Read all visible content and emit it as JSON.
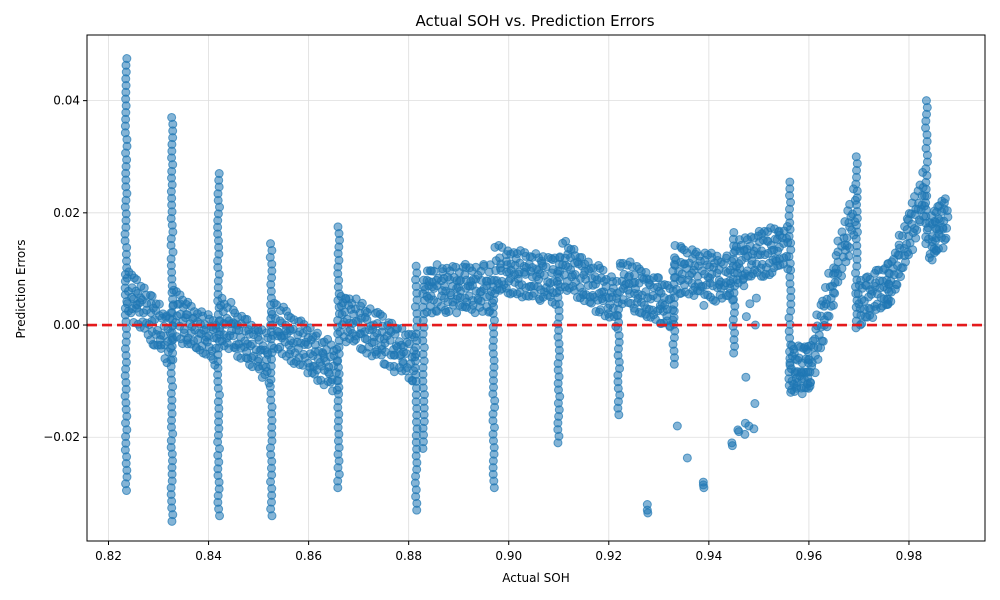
{
  "chart_data": {
    "type": "scatter",
    "title": "Actual SOH vs. Prediction Errors",
    "xlabel": "Actual SOH",
    "ylabel": "Prediction Errors",
    "xlim": [
      0.8157,
      0.9952
    ],
    "ylim": [
      -0.0385,
      0.0517
    ],
    "xticks": [
      0.82,
      0.84,
      0.86,
      0.88,
      0.9,
      0.92,
      0.94,
      0.96,
      0.98
    ],
    "xtick_labels": [
      "0.82",
      "0.84",
      "0.86",
      "0.88",
      "0.90",
      "0.92",
      "0.94",
      "0.96",
      "0.98"
    ],
    "yticks": [
      -0.02,
      0.0,
      0.02,
      0.04
    ],
    "ytick_labels": [
      "−0.02",
      "0.00",
      "0.02",
      "0.04"
    ],
    "grid": true,
    "reference_line": {
      "y": 0.0,
      "style": "dashed",
      "color": "#e41a1c"
    },
    "point_color": "#1f77b4",
    "vertical_streaks": [
      {
        "x": 0.8235,
        "y_min": -0.0295,
        "y_max": 0.0475
      },
      {
        "x": 0.8327,
        "y_min": -0.035,
        "y_max": 0.037
      },
      {
        "x": 0.842,
        "y_min": -0.034,
        "y_max": 0.027
      },
      {
        "x": 0.8525,
        "y_min": -0.034,
        "y_max": 0.0145
      },
      {
        "x": 0.866,
        "y_min": -0.029,
        "y_max": 0.0175
      },
      {
        "x": 0.8815,
        "y_min": -0.033,
        "y_max": 0.0105
      },
      {
        "x": 0.883,
        "y_min": -0.022,
        "y_max": 0.008
      },
      {
        "x": 0.897,
        "y_min": -0.029,
        "y_max": 0.008
      },
      {
        "x": 0.91,
        "y_min": -0.021,
        "y_max": 0.012
      },
      {
        "x": 0.922,
        "y_min": -0.016,
        "y_max": 0.004
      },
      {
        "x": 0.933,
        "y_min": -0.007,
        "y_max": 0.012
      },
      {
        "x": 0.945,
        "y_min": -0.005,
        "y_max": 0.0165
      },
      {
        "x": 0.9562,
        "y_min": -0.012,
        "y_max": 0.0255
      },
      {
        "x": 0.9695,
        "y_min": -0.0005,
        "y_max": 0.03
      },
      {
        "x": 0.9835,
        "y_min": 0.0145,
        "y_max": 0.04
      }
    ],
    "trend_segments": [
      [
        [
          0.824,
          0.006
        ],
        [
          0.8325,
          -0.003
        ]
      ],
      [
        [
          0.833,
          0.002
        ],
        [
          0.8415,
          -0.003
        ]
      ],
      [
        [
          0.8425,
          0.001
        ],
        [
          0.852,
          -0.006
        ]
      ],
      [
        [
          0.853,
          0.0
        ],
        [
          0.8655,
          -0.008
        ]
      ],
      [
        [
          0.8665,
          0.002
        ],
        [
          0.881,
          -0.006
        ]
      ],
      [
        [
          0.8835,
          0.0065
        ],
        [
          0.8965,
          0.0065
        ]
      ],
      [
        [
          0.8975,
          0.01
        ],
        [
          0.9095,
          0.008
        ]
      ],
      [
        [
          0.9105,
          0.011
        ],
        [
          0.9215,
          0.004
        ]
      ],
      [
        [
          0.9225,
          0.008
        ],
        [
          0.9325,
          0.003
        ]
      ],
      [
        [
          0.9335,
          0.01
        ],
        [
          0.9445,
          0.008
        ]
      ],
      [
        [
          0.9455,
          0.011
        ],
        [
          0.9555,
          0.014
        ]
      ],
      [
        [
          0.9565,
          -0.008
        ],
        [
          0.96,
          -0.008
        ]
      ],
      [
        [
          0.96,
          -0.008
        ],
        [
          0.969,
          0.02
        ]
      ],
      [
        [
          0.97,
          0.004
        ],
        [
          0.976,
          0.007
        ]
      ],
      [
        [
          0.976,
          0.007
        ],
        [
          0.983,
          0.023
        ]
      ],
      [
        [
          0.984,
          0.015
        ],
        [
          0.9875,
          0.019
        ]
      ]
    ],
    "outliers": [
      [
        0.9277,
        -0.032
      ],
      [
        0.9277,
        -0.033
      ],
      [
        0.9278,
        -0.0335
      ],
      [
        0.9337,
        -0.018
      ],
      [
        0.9357,
        -0.0237
      ],
      [
        0.9389,
        -0.028
      ],
      [
        0.939,
        -0.029
      ],
      [
        0.9389,
        -0.0285
      ],
      [
        0.939,
        0.0035
      ],
      [
        0.9446,
        -0.021
      ],
      [
        0.9447,
        -0.0215
      ],
      [
        0.9458,
        -0.0187
      ],
      [
        0.946,
        -0.019
      ],
      [
        0.9472,
        -0.0195
      ],
      [
        0.9473,
        -0.0175
      ],
      [
        0.9474,
        -0.0093
      ],
      [
        0.948,
        -0.018
      ],
      [
        0.9482,
        0.0038
      ],
      [
        0.949,
        -0.0185
      ],
      [
        0.9492,
        -0.014
      ],
      [
        0.9493,
        0.0
      ],
      [
        0.947,
        0.007
      ],
      [
        0.9475,
        0.0015
      ],
      [
        0.9495,
        0.0048
      ]
    ]
  }
}
